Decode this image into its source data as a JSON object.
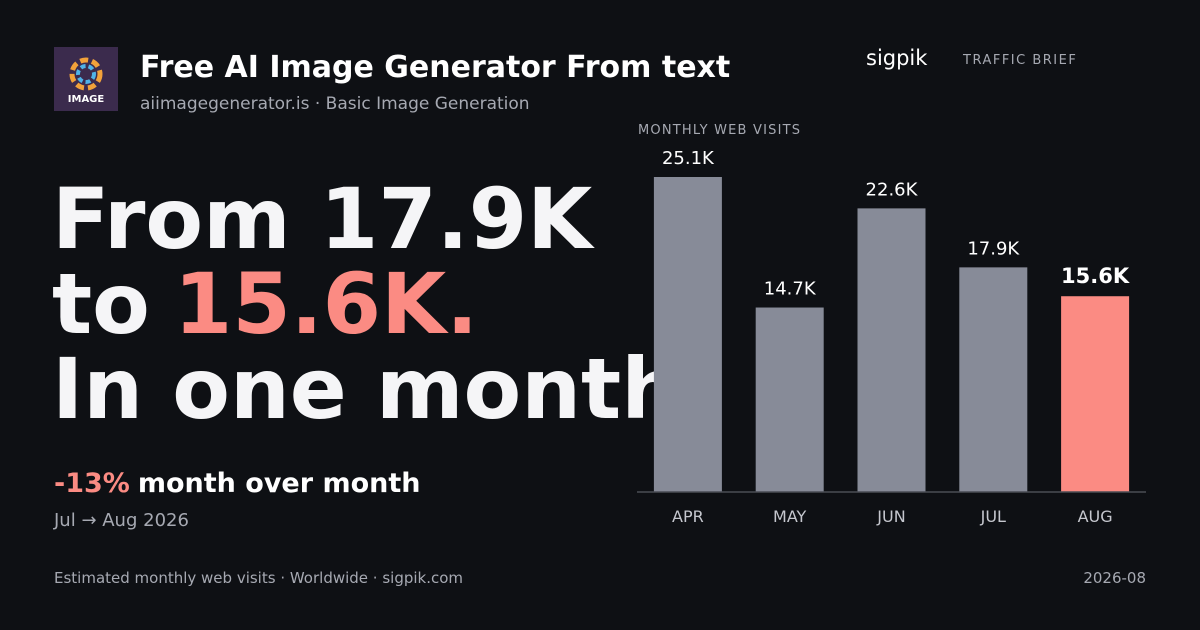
{
  "header": {
    "logo_text": "IMAGE",
    "title": "Free AI Image Generator From text",
    "subtitle": "aiimagegenerator.is · Basic Image Generation",
    "brand": "sigpik",
    "brand_tag": "TRAFFIC BRIEF"
  },
  "headline": {
    "line1": "From 17.9K",
    "line2_prefix": "to",
    "line2_highlight": "15.6K.",
    "line3": "In one month."
  },
  "change": {
    "percent": "-13%",
    "label": "month over month",
    "period": "Jul → Aug 2026"
  },
  "footer": {
    "note": "Estimated monthly web visits · Worldwide · sigpik.com",
    "date": "2026-08"
  },
  "chart_data": {
    "type": "bar",
    "title": "MONTHLY WEB VISITS",
    "categories": [
      "APR",
      "MAY",
      "JUN",
      "JUL",
      "AUG"
    ],
    "values": [
      25100,
      14700,
      22600,
      17900,
      15600
    ],
    "value_labels": [
      "25.1K",
      "14.7K",
      "22.6K",
      "17.9K",
      "15.6K"
    ],
    "colors": [
      "#878b98",
      "#878b98",
      "#878b98",
      "#878b98",
      "#fb8b83"
    ],
    "ylim": [
      0,
      25100
    ]
  }
}
